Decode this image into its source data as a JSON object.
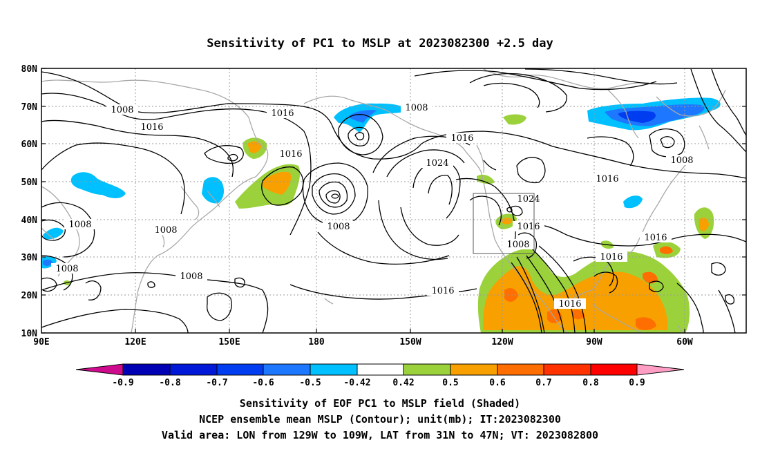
{
  "title": "Sensitivity of PC1 to MSLP at 2023082300 +2.5 day",
  "axes": {
    "x_ticks": [
      "90E",
      "120E",
      "150E",
      "180",
      "150W",
      "120W",
      "90W",
      "60W"
    ],
    "y_ticks": [
      "80N",
      "70N",
      "60N",
      "50N",
      "40N",
      "30N",
      "20N",
      "10N"
    ]
  },
  "colorbar": {
    "labels": [
      "-0.9",
      "-0.8",
      "-0.7",
      "-0.6",
      "-0.5",
      "-0.42",
      "0.42",
      "0.5",
      "0.6",
      "0.7",
      "0.8",
      "0.9"
    ],
    "colors": [
      "#ce0b8c",
      "#0000b4",
      "#0018d8",
      "#003cf0",
      "#1e78ff",
      "#00c0ff",
      "#ffffff",
      "#9bd23c",
      "#f7a000",
      "#ff6e00",
      "#ff3200",
      "#ff0000",
      "#ff9ec4"
    ]
  },
  "contour_labels": [
    {
      "id": "c1",
      "text": "1008"
    },
    {
      "id": "c2",
      "text": "1016"
    },
    {
      "id": "c3",
      "text": "1016"
    },
    {
      "id": "c4",
      "text": "1008"
    },
    {
      "id": "c5",
      "text": "1016"
    },
    {
      "id": "c6",
      "text": "1016"
    },
    {
      "id": "c7",
      "text": "1024"
    },
    {
      "id": "c8",
      "text": "1008"
    },
    {
      "id": "c9",
      "text": "1008"
    },
    {
      "id": "c10",
      "text": "1008"
    },
    {
      "id": "c11",
      "text": "1008"
    },
    {
      "id": "c12",
      "text": "1008"
    },
    {
      "id": "c13",
      "text": "1016"
    },
    {
      "id": "c14",
      "text": "1024"
    },
    {
      "id": "c15",
      "text": "1016"
    },
    {
      "id": "c16",
      "text": "1008"
    },
    {
      "id": "c17",
      "text": "1016"
    },
    {
      "id": "c18",
      "text": "1016"
    },
    {
      "id": "c19",
      "text": "1016"
    },
    {
      "id": "c20",
      "text": "1016"
    },
    {
      "id": "c21",
      "text": "1008"
    }
  ],
  "caption": {
    "line1": "Sensitivity of EOF PC1 to MSLP field (Shaded)",
    "line2": "NCEP ensemble mean MSLP (Contour); unit(mb); IT:2023082300",
    "line3": "Valid area: LON from 129W to 109W, LAT from 31N to 47N; VT: 2023082800"
  }
}
